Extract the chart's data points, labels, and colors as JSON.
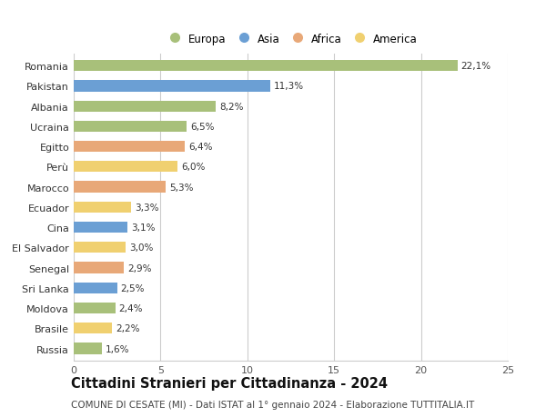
{
  "countries": [
    "Romania",
    "Pakistan",
    "Albania",
    "Ucraina",
    "Egitto",
    "Perù",
    "Marocco",
    "Ecuador",
    "Cina",
    "El Salvador",
    "Senegal",
    "Sri Lanka",
    "Moldova",
    "Brasile",
    "Russia"
  ],
  "values": [
    22.1,
    11.3,
    8.2,
    6.5,
    6.4,
    6.0,
    5.3,
    3.3,
    3.1,
    3.0,
    2.9,
    2.5,
    2.4,
    2.2,
    1.6
  ],
  "labels": [
    "22,1%",
    "11,3%",
    "8,2%",
    "6,5%",
    "6,4%",
    "6,0%",
    "5,3%",
    "3,3%",
    "3,1%",
    "3,0%",
    "2,9%",
    "2,5%",
    "2,4%",
    "2,2%",
    "1,6%"
  ],
  "continents": [
    "Europa",
    "Asia",
    "Europa",
    "Europa",
    "Africa",
    "America",
    "Africa",
    "America",
    "Asia",
    "America",
    "Africa",
    "Asia",
    "Europa",
    "America",
    "Europa"
  ],
  "continent_colors": {
    "Europa": "#a8c07a",
    "Asia": "#6b9fd4",
    "Africa": "#e8a878",
    "America": "#f0d070"
  },
  "legend_order": [
    "Europa",
    "Asia",
    "Africa",
    "America"
  ],
  "xlim": [
    0,
    25
  ],
  "xticks": [
    0,
    5,
    10,
    15,
    20,
    25
  ],
  "title": "Cittadini Stranieri per Cittadinanza - 2024",
  "subtitle": "COMUNE DI CESATE (MI) - Dati ISTAT al 1° gennaio 2024 - Elaborazione TUTTITALIA.IT",
  "bg_color": "#ffffff",
  "grid_color": "#cccccc",
  "bar_height": 0.55,
  "label_fontsize": 7.5,
  "tick_fontsize": 8.0,
  "title_fontsize": 10.5,
  "subtitle_fontsize": 7.5
}
